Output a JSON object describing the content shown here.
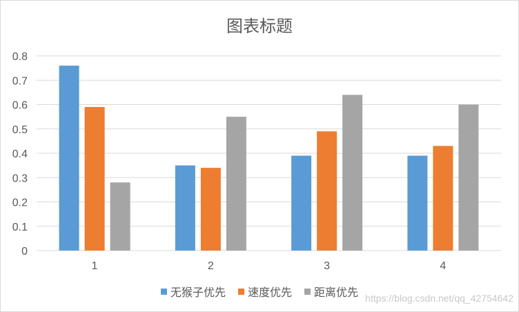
{
  "chart_data": {
    "type": "bar",
    "title": "图表标题",
    "categories": [
      "1",
      "2",
      "3",
      "4"
    ],
    "series": [
      {
        "name": "无猴子优先",
        "color": "#5b9bd5",
        "values": [
          0.76,
          0.35,
          0.39,
          0.39
        ]
      },
      {
        "name": "速度优先",
        "color": "#ed7d31",
        "values": [
          0.59,
          0.34,
          0.49,
          0.43
        ]
      },
      {
        "name": "距离优先",
        "color": "#a5a5a5",
        "values": [
          0.28,
          0.55,
          0.64,
          0.6
        ]
      }
    ],
    "ylim": [
      0,
      0.8
    ],
    "yticks": [
      "0",
      "0.1",
      "0.2",
      "0.3",
      "0.4",
      "0.5",
      "0.6",
      "0.7",
      "0.8"
    ],
    "grid": true,
    "legend_position": "bottom"
  },
  "watermark": "https://blog.csdn.net/qq_42754642"
}
